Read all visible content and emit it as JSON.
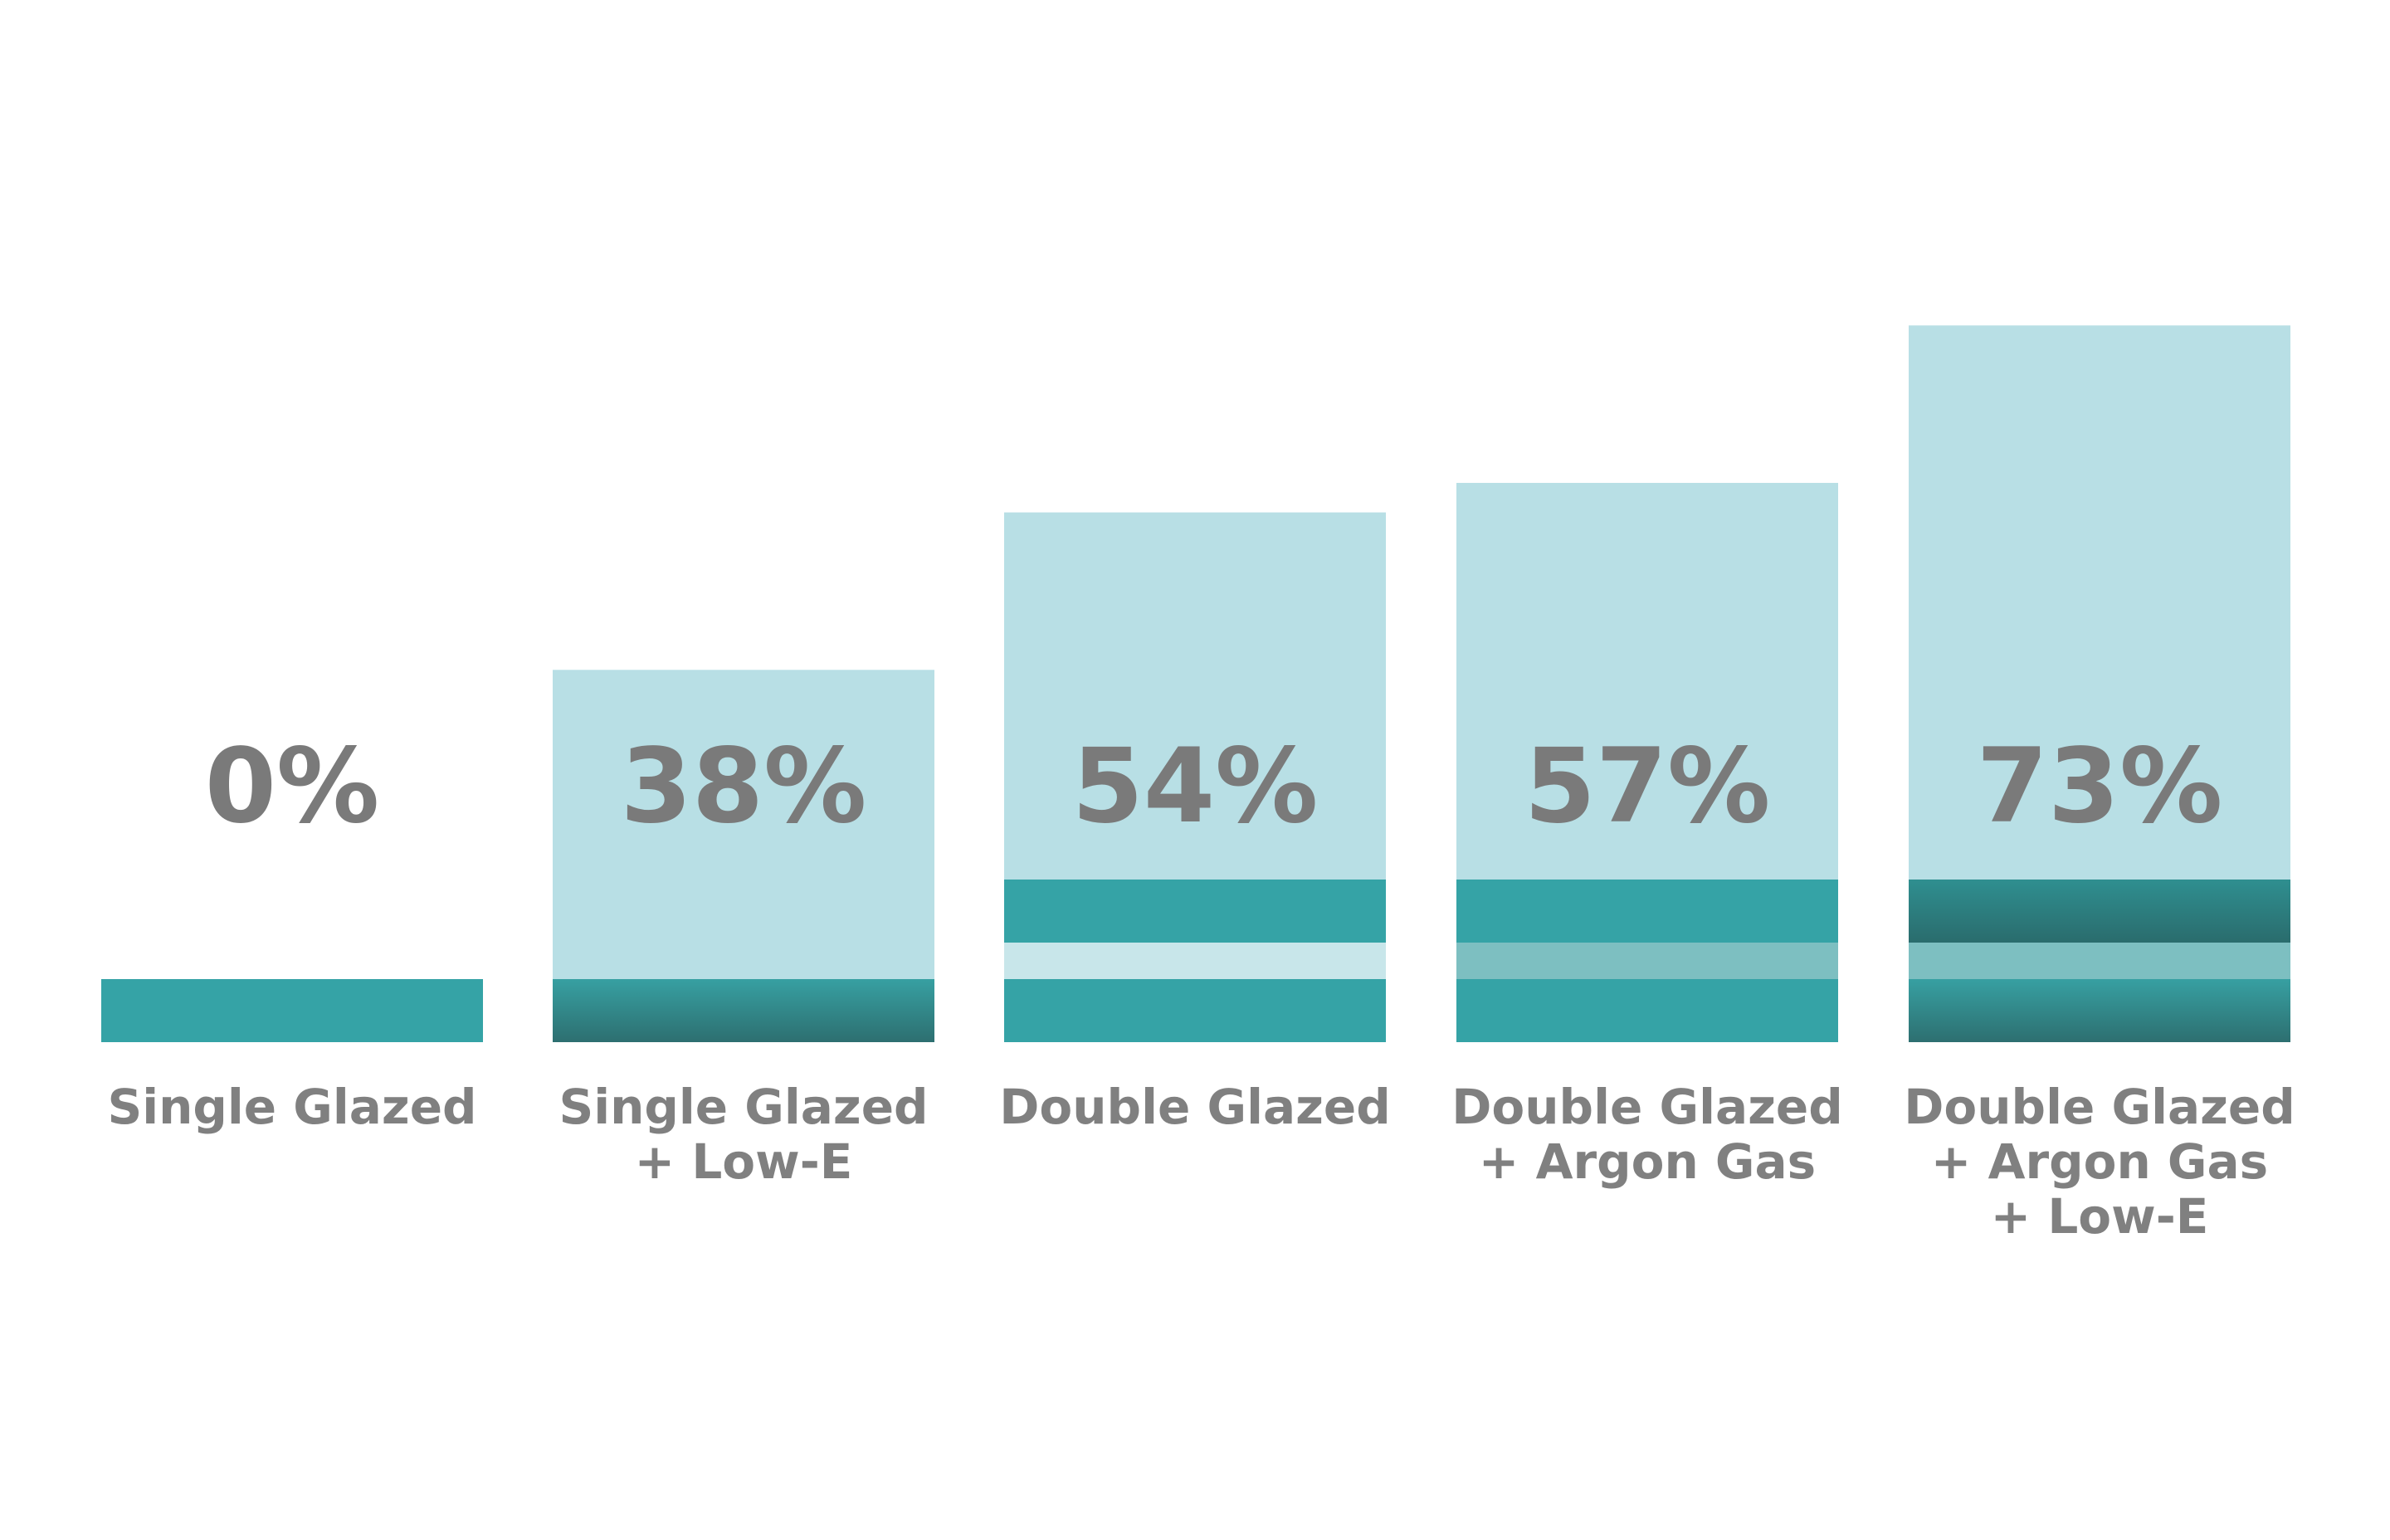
{
  "chart_data": {
    "type": "bar",
    "categories": [
      [
        "Single Glazed"
      ],
      [
        "Single Glazed",
        "+ Low-E"
      ],
      [
        "Double Glazed"
      ],
      [
        "Double Glazed",
        "+ Argon Gas"
      ],
      [
        "Double Glazed",
        "+ Argon Gas",
        "+ Low-E"
      ]
    ],
    "values": [
      0,
      38,
      54,
      57,
      73
    ],
    "value_labels": [
      "0%",
      "38%",
      "54%",
      "57%",
      "73%"
    ],
    "ylim": [
      0,
      100
    ],
    "grid": false,
    "legend": "none",
    "colors": {
      "bar": "#b8dfe5",
      "glass": "#35a3a6",
      "glass_dark": "#2f7f80",
      "gap_air": "#c8e6ea",
      "gap_argon": "#7dbfc1",
      "text": "#7a7a7a"
    },
    "icons": [
      "glass-pane-layers"
    ]
  }
}
